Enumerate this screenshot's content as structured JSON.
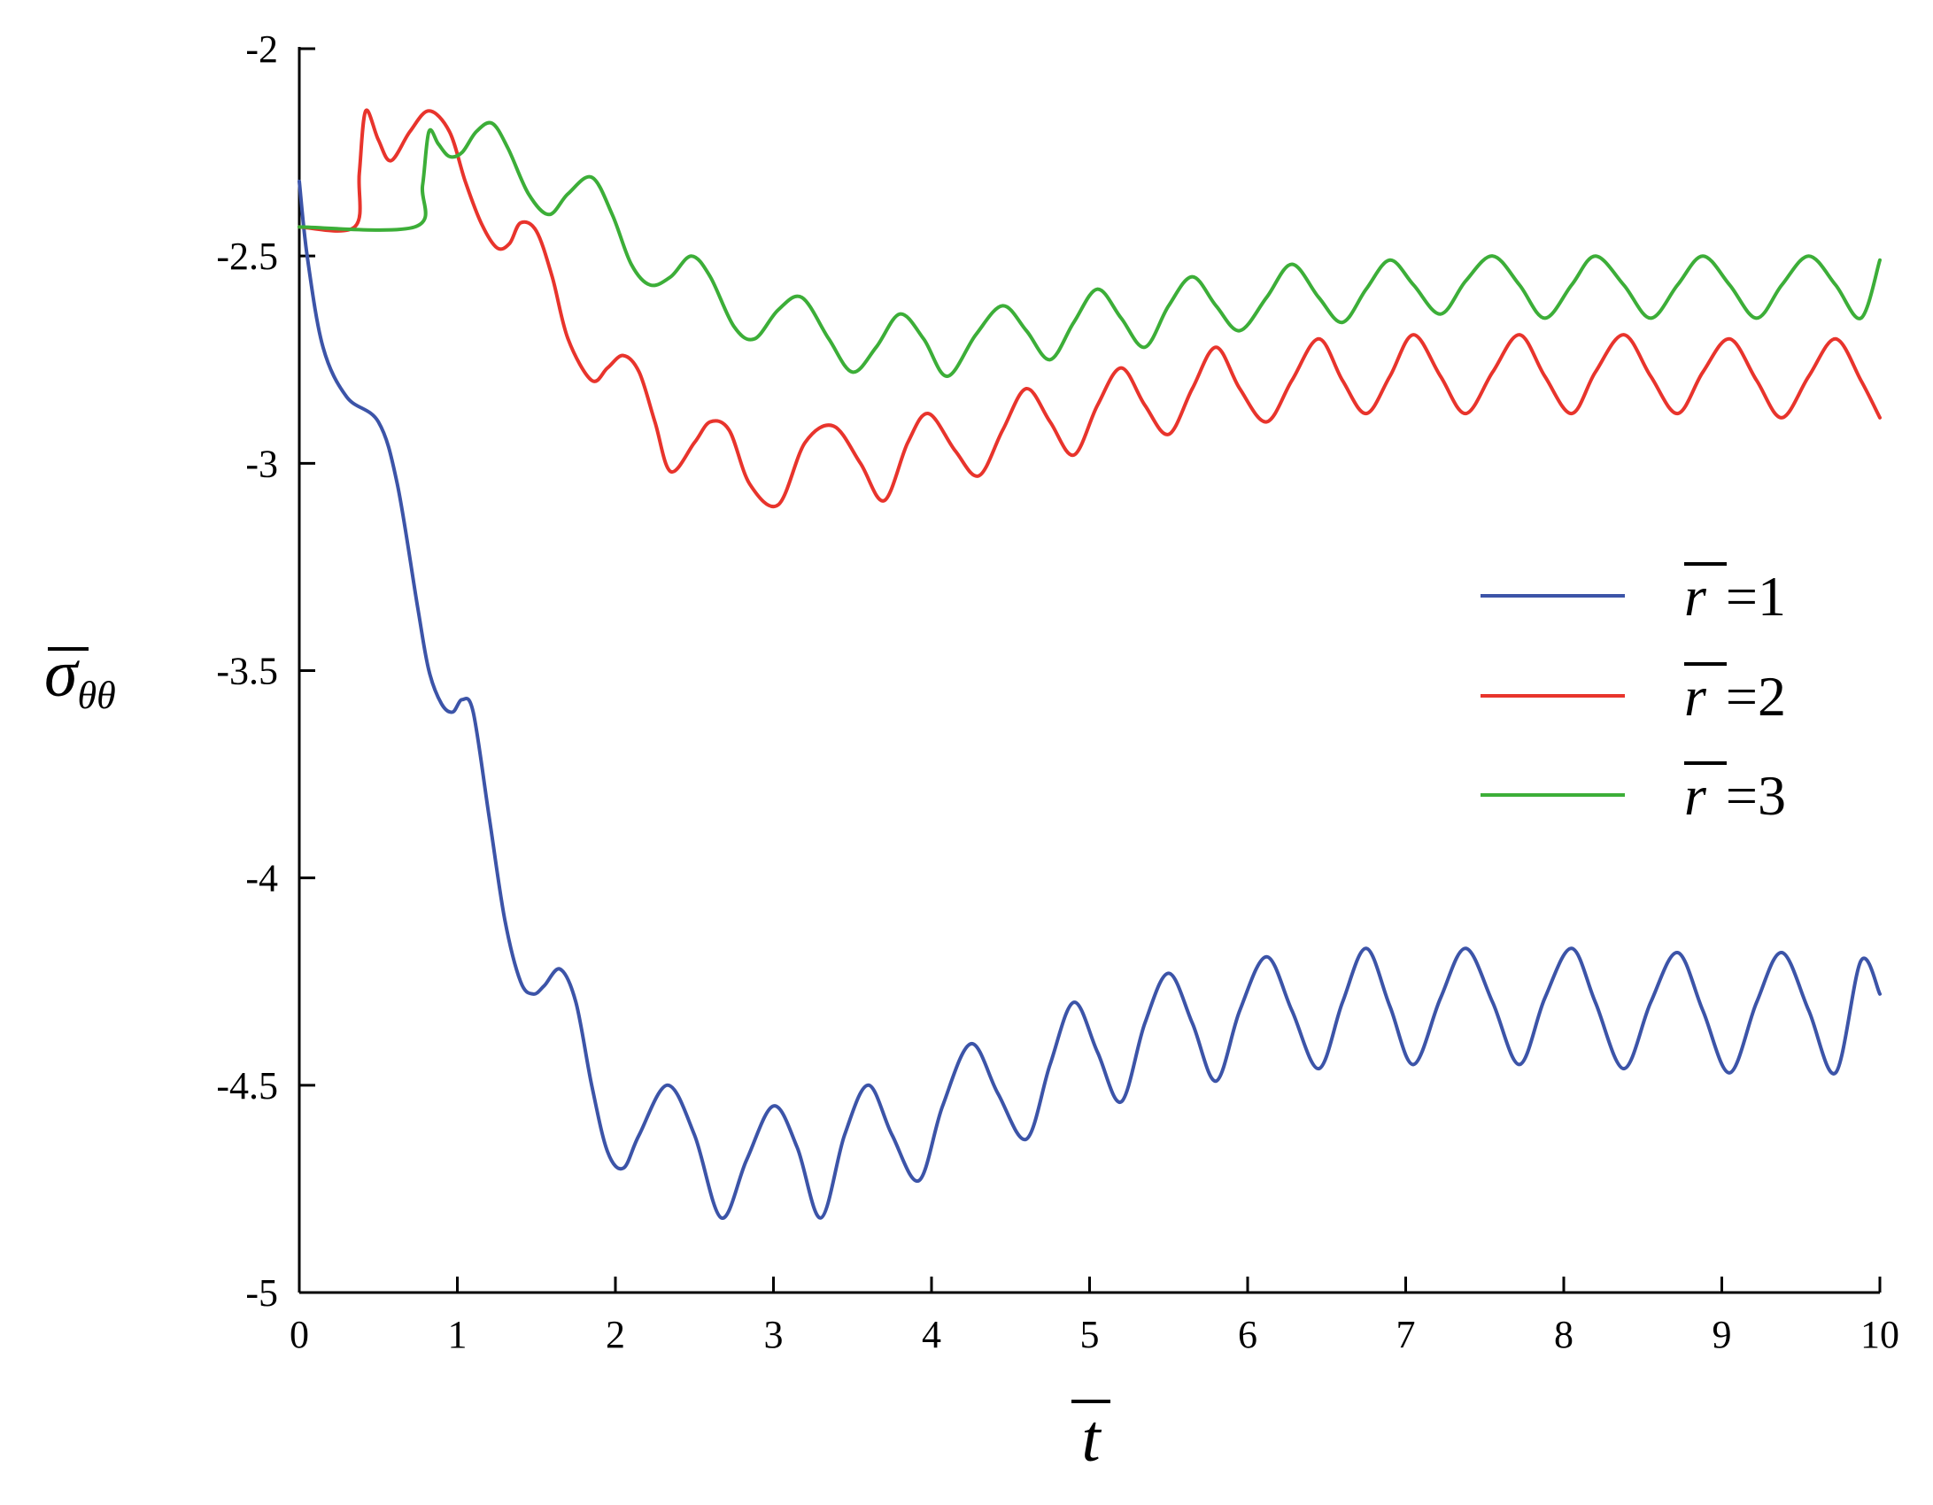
{
  "chart_data": {
    "type": "line",
    "xlabel": "t",
    "ylabel": "σ",
    "ylabel_subscript": "θθ",
    "xlim": [
      0,
      10
    ],
    "ylim": [
      -5,
      -2
    ],
    "xticks": [
      "0",
      "1",
      "2",
      "3",
      "4",
      "5",
      "6",
      "7",
      "8",
      "9",
      "10"
    ],
    "yticks": [
      "-2",
      "-2.5",
      "-3",
      "-3.5",
      "-4",
      "-4.5",
      "-5"
    ],
    "grid": false,
    "legend_position": "right",
    "series": [
      {
        "name": "r = 1",
        "legend_var": "r",
        "legend_eq": "=1",
        "color": "#3c54a8",
        "x": [
          0,
          0.05,
          0.15,
          0.3,
          0.5,
          0.62,
          0.75,
          0.82,
          0.9,
          0.97,
          1.03,
          1.1,
          1.2,
          1.3,
          1.4,
          1.48,
          1.55,
          1.65,
          1.75,
          1.85,
          1.95,
          2.05,
          2.15,
          2.33,
          2.5,
          2.67,
          2.83,
          3.0,
          3.15,
          3.3,
          3.45,
          3.6,
          3.75,
          3.92,
          4.07,
          4.25,
          4.42,
          4.6,
          4.75,
          4.9,
          5.05,
          5.2,
          5.35,
          5.5,
          5.65,
          5.8,
          5.95,
          6.12,
          6.28,
          6.45,
          6.6,
          6.75,
          6.9,
          7.05,
          7.22,
          7.38,
          7.55,
          7.72,
          7.88,
          8.05,
          8.2,
          8.38,
          8.55,
          8.72,
          8.88,
          9.05,
          9.22,
          9.38,
          9.55,
          9.72,
          9.88,
          10.0
        ],
        "values": [
          -2.32,
          -2.5,
          -2.72,
          -2.84,
          -2.9,
          -3.05,
          -3.35,
          -3.5,
          -3.58,
          -3.6,
          -3.57,
          -3.6,
          -3.85,
          -4.1,
          -4.25,
          -4.28,
          -4.26,
          -4.22,
          -4.3,
          -4.5,
          -4.66,
          -4.7,
          -4.62,
          -4.5,
          -4.62,
          -4.82,
          -4.68,
          -4.55,
          -4.65,
          -4.82,
          -4.62,
          -4.5,
          -4.62,
          -4.73,
          -4.55,
          -4.4,
          -4.52,
          -4.63,
          -4.45,
          -4.3,
          -4.42,
          -4.54,
          -4.35,
          -4.23,
          -4.35,
          -4.49,
          -4.32,
          -4.19,
          -4.32,
          -4.46,
          -4.3,
          -4.17,
          -4.31,
          -4.45,
          -4.29,
          -4.17,
          -4.3,
          -4.45,
          -4.29,
          -4.17,
          -4.3,
          -4.46,
          -4.3,
          -4.18,
          -4.32,
          -4.47,
          -4.3,
          -4.18,
          -4.32,
          -4.47,
          -4.2,
          -4.28
        ]
      },
      {
        "name": "r = 2",
        "legend_var": "r",
        "legend_eq": "=2",
        "color": "#e8342c",
        "x": [
          0,
          0.35,
          0.38,
          0.42,
          0.5,
          0.58,
          0.7,
          0.82,
          0.95,
          1.05,
          1.15,
          1.25,
          1.33,
          1.4,
          1.5,
          1.6,
          1.7,
          1.85,
          1.95,
          2.05,
          2.15,
          2.25,
          2.35,
          2.5,
          2.6,
          2.72,
          2.85,
          3.03,
          3.2,
          3.38,
          3.55,
          3.7,
          3.85,
          3.98,
          4.15,
          4.3,
          4.45,
          4.6,
          4.75,
          4.9,
          5.05,
          5.2,
          5.35,
          5.5,
          5.65,
          5.8,
          5.95,
          6.12,
          6.28,
          6.45,
          6.6,
          6.75,
          6.9,
          7.05,
          7.22,
          7.38,
          7.55,
          7.72,
          7.88,
          8.05,
          8.2,
          8.38,
          8.55,
          8.72,
          8.88,
          9.05,
          9.22,
          9.38,
          9.55,
          9.72,
          9.88,
          10.0
        ],
        "values": [
          -2.43,
          -2.43,
          -2.3,
          -2.15,
          -2.22,
          -2.27,
          -2.2,
          -2.15,
          -2.2,
          -2.32,
          -2.42,
          -2.48,
          -2.47,
          -2.42,
          -2.44,
          -2.55,
          -2.7,
          -2.8,
          -2.77,
          -2.74,
          -2.78,
          -2.9,
          -3.02,
          -2.95,
          -2.9,
          -2.92,
          -3.05,
          -3.1,
          -2.95,
          -2.91,
          -3.0,
          -3.09,
          -2.95,
          -2.88,
          -2.97,
          -3.03,
          -2.92,
          -2.82,
          -2.9,
          -2.98,
          -2.86,
          -2.77,
          -2.86,
          -2.93,
          -2.82,
          -2.72,
          -2.82,
          -2.9,
          -2.8,
          -2.7,
          -2.8,
          -2.88,
          -2.79,
          -2.69,
          -2.79,
          -2.88,
          -2.78,
          -2.69,
          -2.79,
          -2.88,
          -2.78,
          -2.69,
          -2.79,
          -2.88,
          -2.78,
          -2.7,
          -2.8,
          -2.89,
          -2.79,
          -2.7,
          -2.8,
          -2.89
        ]
      },
      {
        "name": "r = 3",
        "legend_var": "r",
        "legend_eq": "=3",
        "color": "#3cae38",
        "x": [
          0,
          0.73,
          0.78,
          0.82,
          0.88,
          0.95,
          1.03,
          1.12,
          1.22,
          1.32,
          1.45,
          1.58,
          1.7,
          1.85,
          1.98,
          2.1,
          2.22,
          2.35,
          2.48,
          2.6,
          2.75,
          2.88,
          3.03,
          3.18,
          3.35,
          3.5,
          3.65,
          3.8,
          3.95,
          4.1,
          4.28,
          4.45,
          4.6,
          4.75,
          4.9,
          5.05,
          5.2,
          5.35,
          5.5,
          5.65,
          5.8,
          5.95,
          6.12,
          6.28,
          6.45,
          6.6,
          6.75,
          6.9,
          7.05,
          7.22,
          7.38,
          7.55,
          7.72,
          7.88,
          8.05,
          8.2,
          8.38,
          8.55,
          8.72,
          8.88,
          9.05,
          9.22,
          9.38,
          9.55,
          9.72,
          9.88,
          10.0
        ],
        "values": [
          -2.43,
          -2.43,
          -2.33,
          -2.2,
          -2.23,
          -2.26,
          -2.25,
          -2.2,
          -2.18,
          -2.24,
          -2.35,
          -2.4,
          -2.35,
          -2.31,
          -2.4,
          -2.52,
          -2.57,
          -2.55,
          -2.5,
          -2.55,
          -2.67,
          -2.7,
          -2.63,
          -2.6,
          -2.7,
          -2.78,
          -2.72,
          -2.64,
          -2.7,
          -2.79,
          -2.69,
          -2.62,
          -2.68,
          -2.75,
          -2.66,
          -2.58,
          -2.65,
          -2.72,
          -2.62,
          -2.55,
          -2.62,
          -2.68,
          -2.6,
          -2.52,
          -2.6,
          -2.66,
          -2.58,
          -2.51,
          -2.57,
          -2.64,
          -2.56,
          -2.5,
          -2.57,
          -2.65,
          -2.57,
          -2.5,
          -2.57,
          -2.65,
          -2.57,
          -2.5,
          -2.57,
          -2.65,
          -2.57,
          -2.5,
          -2.57,
          -2.65,
          -2.51
        ]
      }
    ]
  }
}
